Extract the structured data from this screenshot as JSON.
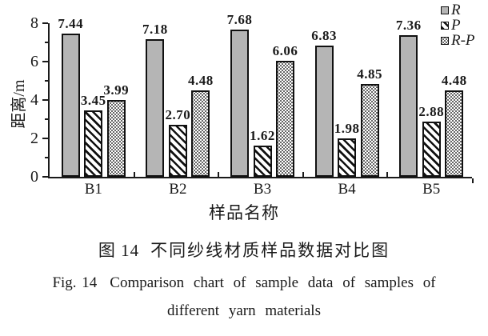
{
  "chart_data": {
    "type": "bar",
    "title": "",
    "categories": [
      "B1",
      "B2",
      "B3",
      "B4",
      "B5"
    ],
    "series": [
      {
        "name": "R",
        "pattern": "gray",
        "fill": "#b5b5b5",
        "values": [
          7.44,
          7.18,
          7.68,
          6.83,
          7.36
        ]
      },
      {
        "name": "P",
        "pattern": "hatch",
        "fill": "black-diagonal-hatch",
        "values": [
          3.45,
          2.7,
          1.62,
          1.98,
          2.88
        ]
      },
      {
        "name": "R-P",
        "pattern": "dots",
        "fill": "black-dots-on-white",
        "values": [
          3.99,
          4.48,
          6.06,
          4.85,
          4.48
        ]
      }
    ],
    "xlabel": "样品名称",
    "ylabel": "距离/m",
    "ylim": [
      0,
      8
    ],
    "yticks_major": [
      0,
      2,
      4,
      6,
      8
    ],
    "yticks_minor": [
      1,
      3,
      5,
      7
    ],
    "value_label_decimals": 2,
    "legend_position": "top-right",
    "grid": false
  },
  "figure": {
    "caption_zh_prefix": "图 14",
    "caption_zh_text": "不同纱线材质样品数据对比图",
    "caption_en_prefix": "Fig. 14",
    "caption_en_text": "Comparison chart of sample data of samples of",
    "caption_en_line2": "different yarn materials"
  },
  "colors": {
    "background": "#ffffff",
    "axis": "#1a1a1a",
    "text": "#1a1a1a",
    "bar_gray": "#b5b5b5",
    "bar_outline": "#111111"
  }
}
